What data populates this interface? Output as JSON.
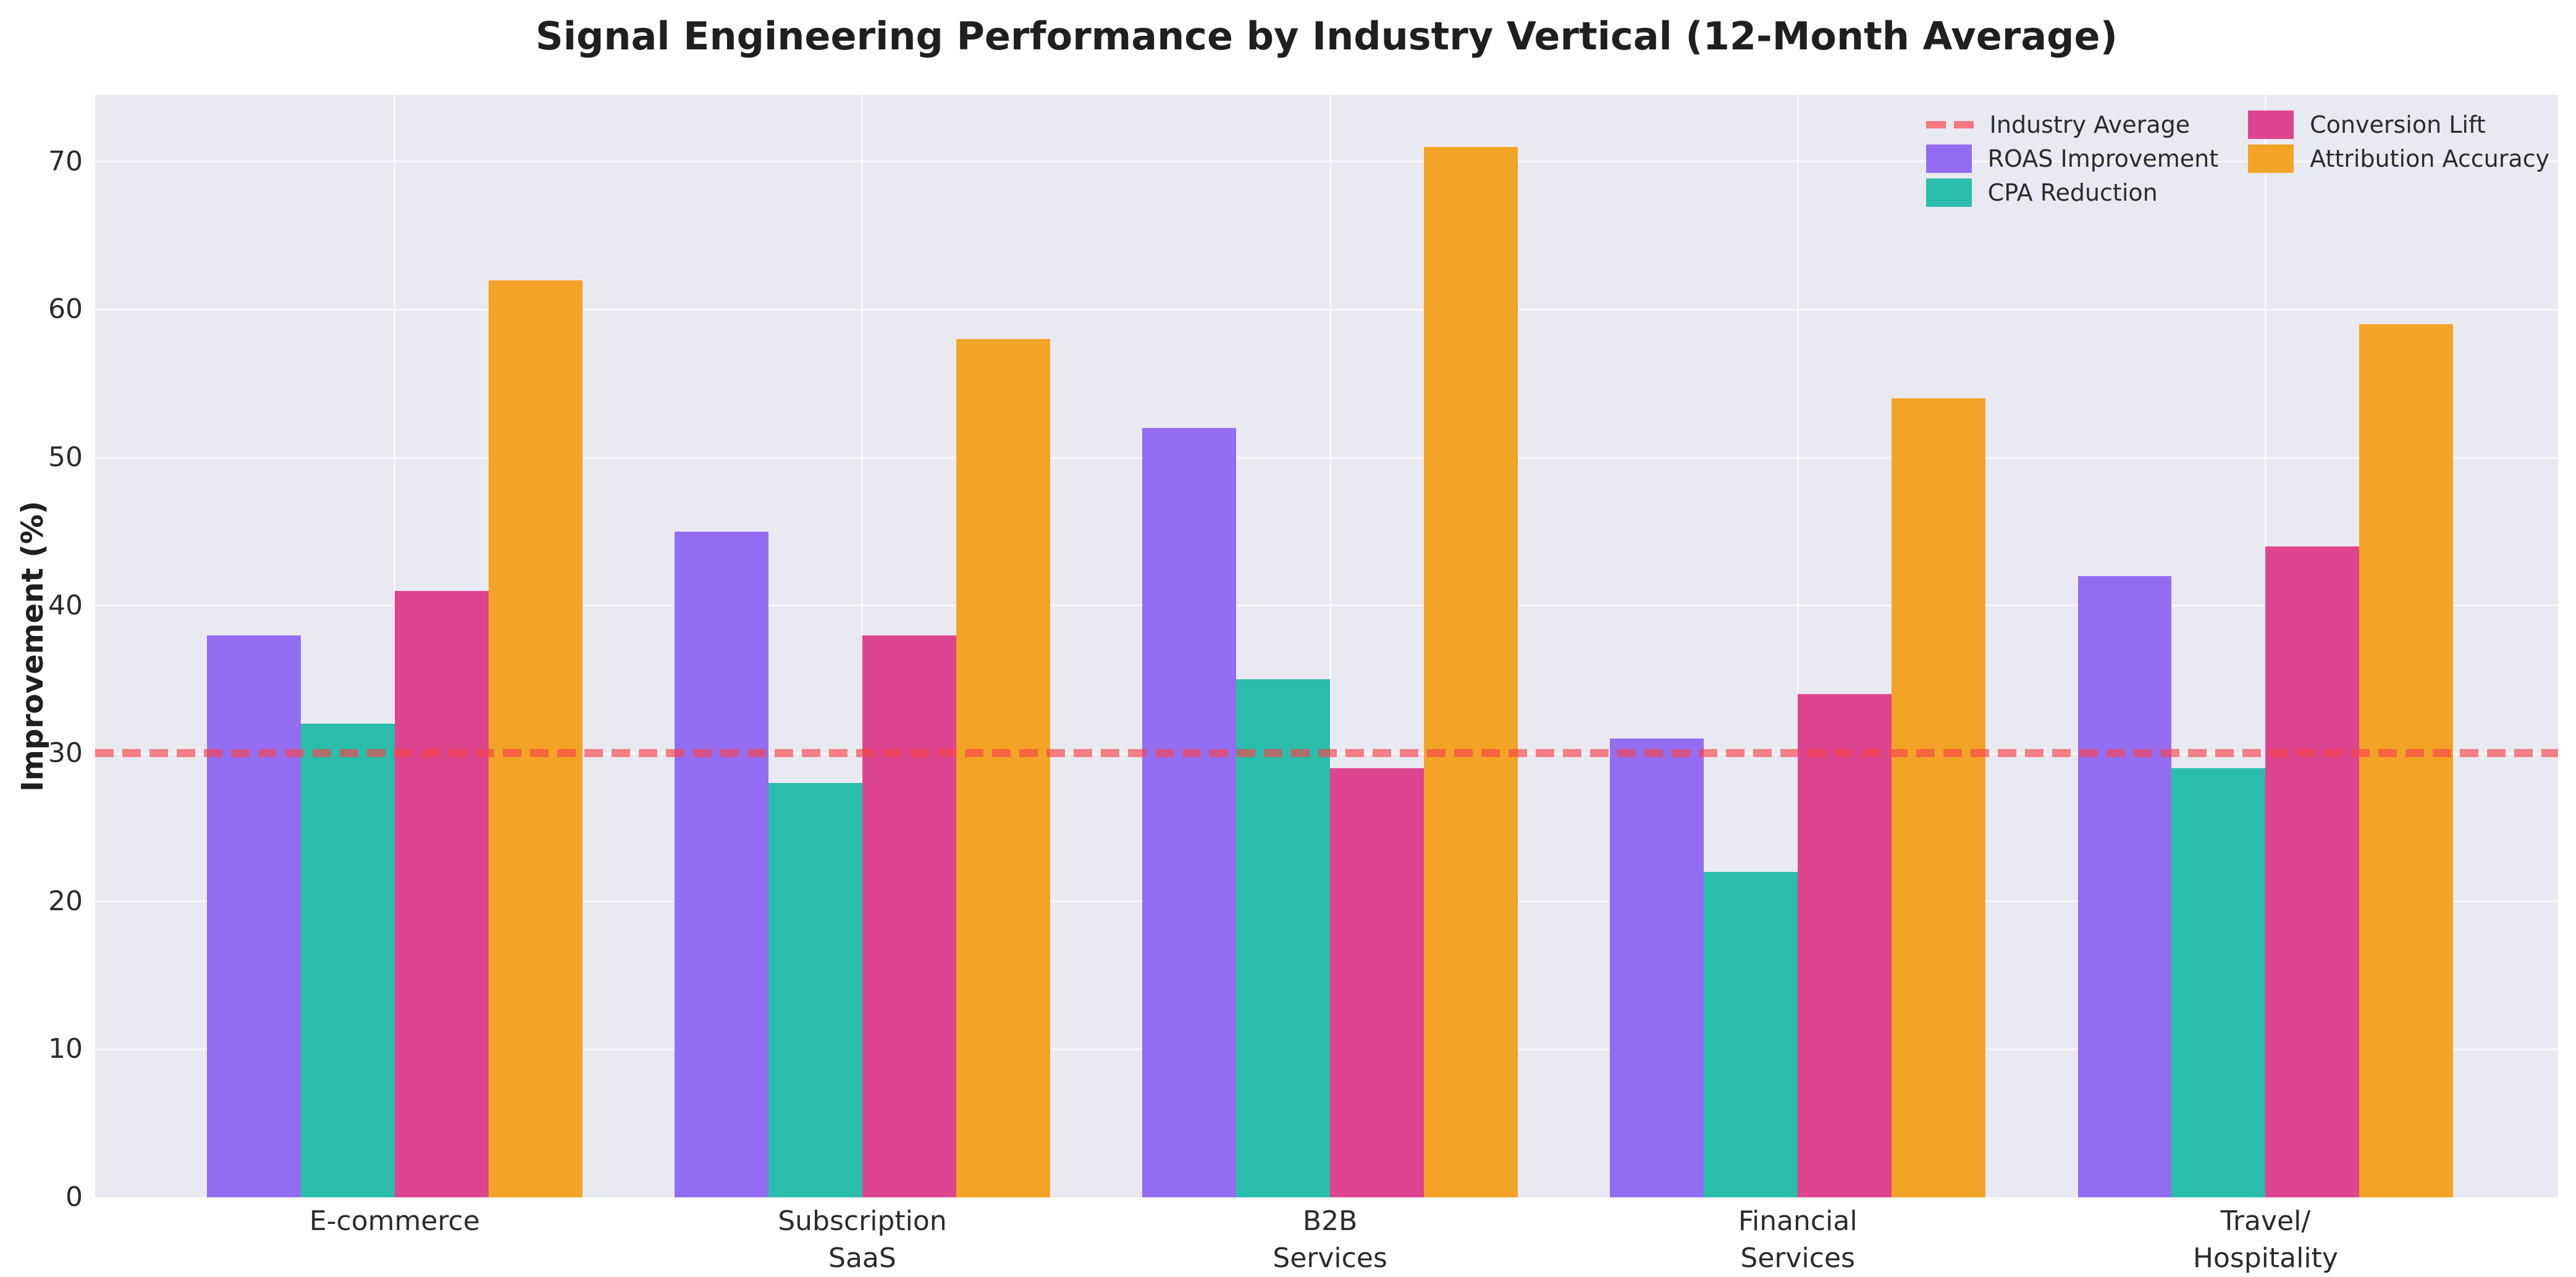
{
  "chart_data": {
    "type": "bar",
    "title": "Signal Engineering Performance by Industry Vertical (12-Month Average)",
    "ylabel": "Improvement (%)",
    "ylim": [
      0,
      74.5
    ],
    "yticks": [
      0,
      10,
      20,
      30,
      40,
      50,
      60,
      70
    ],
    "grid": true,
    "plot_background": "#E9E9F1",
    "grid_color": "#F7F7FA",
    "legend_position": "upper right",
    "legend_columns": 2,
    "categories": [
      "E-commerce",
      "Subscription SaaS",
      "B2B Services",
      "Financial Services",
      "Travel/Hospitality"
    ],
    "tick_labels": [
      "E-commerce",
      "Subscription\nSaaS",
      "B2B\nServices",
      "Financial\nServices",
      "Travel/\nHospitality"
    ],
    "series": [
      {
        "name": "ROAS Improvement",
        "color": "#936DF1",
        "values": [
          38,
          45,
          52,
          31,
          42
        ]
      },
      {
        "name": "CPA Reduction",
        "color": "#2ABDAC",
        "values": [
          32,
          28,
          35,
          22,
          29
        ]
      },
      {
        "name": "Conversion Lift",
        "color": "#DE4590",
        "values": [
          41,
          38,
          29,
          34,
          44
        ]
      },
      {
        "name": "Attribution Accuracy",
        "color": "#F3A426",
        "values": [
          62,
          58,
          71,
          54,
          59
        ]
      }
    ],
    "reference_line": {
      "label": "Industry Average",
      "value": 30,
      "color": "#F7434B",
      "alpha": 0.65,
      "style": "dashed"
    }
  }
}
